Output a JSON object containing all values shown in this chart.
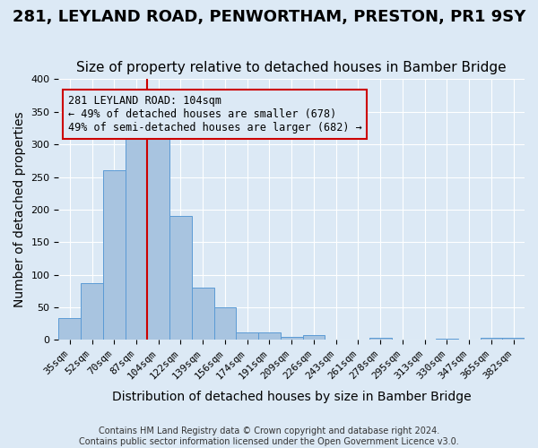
{
  "title": "281, LEYLAND ROAD, PENWORTHAM, PRESTON, PR1 9SY",
  "subtitle": "Size of property relative to detached houses in Bamber Bridge",
  "xlabel": "Distribution of detached houses by size in Bamber Bridge",
  "ylabel": "Number of detached properties",
  "footer_line1": "Contains HM Land Registry data © Crown copyright and database right 2024.",
  "footer_line2": "Contains public sector information licensed under the Open Government Licence v3.0.",
  "bin_labels": [
    "35sqm",
    "52sqm",
    "70sqm",
    "87sqm",
    "104sqm",
    "122sqm",
    "139sqm",
    "156sqm",
    "174sqm",
    "191sqm",
    "209sqm",
    "226sqm",
    "243sqm",
    "261sqm",
    "278sqm",
    "295sqm",
    "313sqm",
    "330sqm",
    "347sqm",
    "365sqm",
    "382sqm"
  ],
  "bar_values": [
    33,
    87,
    260,
    320,
    320,
    190,
    81,
    50,
    11,
    11,
    5,
    7,
    0,
    0,
    4,
    0,
    0,
    2,
    0,
    3,
    3
  ],
  "bar_color": "#a8c4e0",
  "bar_edge_color": "#5b9bd5",
  "background_color": "#dce9f5",
  "grid_color": "#ffffff",
  "annotation_line1": "281 LEYLAND ROAD: 104sqm",
  "annotation_line2": "← 49% of detached houses are smaller (678)",
  "annotation_line3": "49% of semi-detached houses are larger (682) →",
  "annotation_box_edge": "#cc0000",
  "vline_x_index": 4,
  "vline_color": "#cc0000",
  "ylim": [
    0,
    400
  ],
  "yticks": [
    0,
    50,
    100,
    150,
    200,
    250,
    300,
    350,
    400
  ],
  "title_fontsize": 13,
  "subtitle_fontsize": 11,
  "xlabel_fontsize": 10,
  "ylabel_fontsize": 10,
  "annotation_fontsize": 8.5,
  "tick_fontsize": 8
}
